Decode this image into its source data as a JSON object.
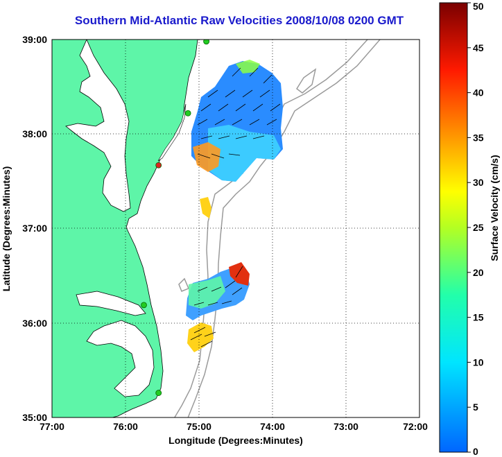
{
  "title": "Southern Mid-Atlantic Raw Velocities 2008/10/08 0200 GMT",
  "x_axis": {
    "label": "Longitude (Degrees:Minutes)",
    "ticks": [
      "77:00",
      "76:00",
      "75:00",
      "74:00",
      "73:00",
      "72:00"
    ]
  },
  "y_axis": {
    "label": "Latitude (Degrees:Minutes)",
    "ticks": [
      "39:00",
      "38:00",
      "37:00",
      "36:00",
      "35:00"
    ]
  },
  "colorbar": {
    "label": "Surface Velocity (cm/s)",
    "ticks": [
      "0",
      "5",
      "10",
      "15",
      "20",
      "25",
      "30",
      "35",
      "40",
      "45",
      "50"
    ],
    "range": [
      0,
      50
    ]
  },
  "map": {
    "lon_range": [
      -77,
      -72
    ],
    "lat_range": [
      35,
      39
    ],
    "grid": true,
    "land_color": "#5ef5a8",
    "bathymetry_color": "#9a9a9a"
  },
  "stations": [
    {
      "name": "station",
      "status": "active",
      "color": "#22cc22",
      "lon": -74.9,
      "lat": 38.98
    },
    {
      "name": "station",
      "status": "active",
      "color": "#22cc22",
      "lon": -75.15,
      "lat": 38.22
    },
    {
      "name": "station",
      "status": "inactive",
      "color": "#dd2222",
      "lon": -75.55,
      "lat": 37.67
    },
    {
      "name": "station",
      "status": "active",
      "color": "#22cc22",
      "lon": -75.75,
      "lat": 36.19
    },
    {
      "name": "station",
      "status": "active",
      "color": "#22cc22",
      "lon": -75.55,
      "lat": 35.26
    }
  ]
}
